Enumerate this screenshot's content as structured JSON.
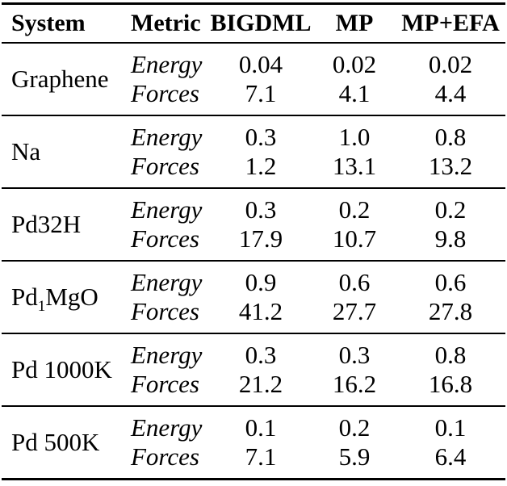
{
  "table": {
    "headers": [
      "System",
      "Metric",
      "BIGDML",
      "MP",
      "MP+EFA"
    ],
    "groups": [
      {
        "system": [
          {
            "text": "Graphene",
            "style": "normal"
          }
        ],
        "rows": [
          {
            "metric": "Energy",
            "values": [
              "0.04",
              "0.02",
              "0.02"
            ]
          },
          {
            "metric": "Forces",
            "values": [
              "7.1",
              "4.1",
              "4.4"
            ]
          }
        ]
      },
      {
        "system": [
          {
            "text": "Na",
            "style": "normal"
          }
        ],
        "rows": [
          {
            "metric": "Energy",
            "values": [
              "0.3",
              "1.0",
              "0.8"
            ]
          },
          {
            "metric": "Forces",
            "values": [
              "1.2",
              "13.1",
              "13.2"
            ]
          }
        ]
      },
      {
        "system": [
          {
            "text": "Pd32H",
            "style": "normal"
          }
        ],
        "rows": [
          {
            "metric": "Energy",
            "values": [
              "0.3",
              "0.2",
              "0.2"
            ]
          },
          {
            "metric": "Forces",
            "values": [
              "17.9",
              "10.7",
              "9.8"
            ]
          }
        ]
      },
      {
        "system": [
          {
            "text": "Pd",
            "style": "normal"
          },
          {
            "text": "1",
            "style": "sub"
          },
          {
            "text": "MgO",
            "style": "normal"
          }
        ],
        "rows": [
          {
            "metric": "Energy",
            "values": [
              "0.9",
              "0.6",
              "0.6"
            ]
          },
          {
            "metric": "Forces",
            "values": [
              "41.2",
              "27.7",
              "27.8"
            ]
          }
        ]
      },
      {
        "system": [
          {
            "text": "Pd 1000K",
            "style": "normal"
          }
        ],
        "rows": [
          {
            "metric": "Energy",
            "values": [
              "0.3",
              "0.3",
              "0.8"
            ]
          },
          {
            "metric": "Forces",
            "values": [
              "21.2",
              "16.2",
              "16.8"
            ]
          }
        ]
      },
      {
        "system": [
          {
            "text": "Pd 500K",
            "style": "normal"
          }
        ],
        "rows": [
          {
            "metric": "Energy",
            "values": [
              "0.1",
              "0.2",
              "0.1"
            ]
          },
          {
            "metric": "Forces",
            "values": [
              "7.1",
              "5.9",
              "6.4"
            ]
          }
        ]
      }
    ]
  },
  "colors": {
    "text": "#000000",
    "background": "#ffffff",
    "rule": "#000000"
  }
}
